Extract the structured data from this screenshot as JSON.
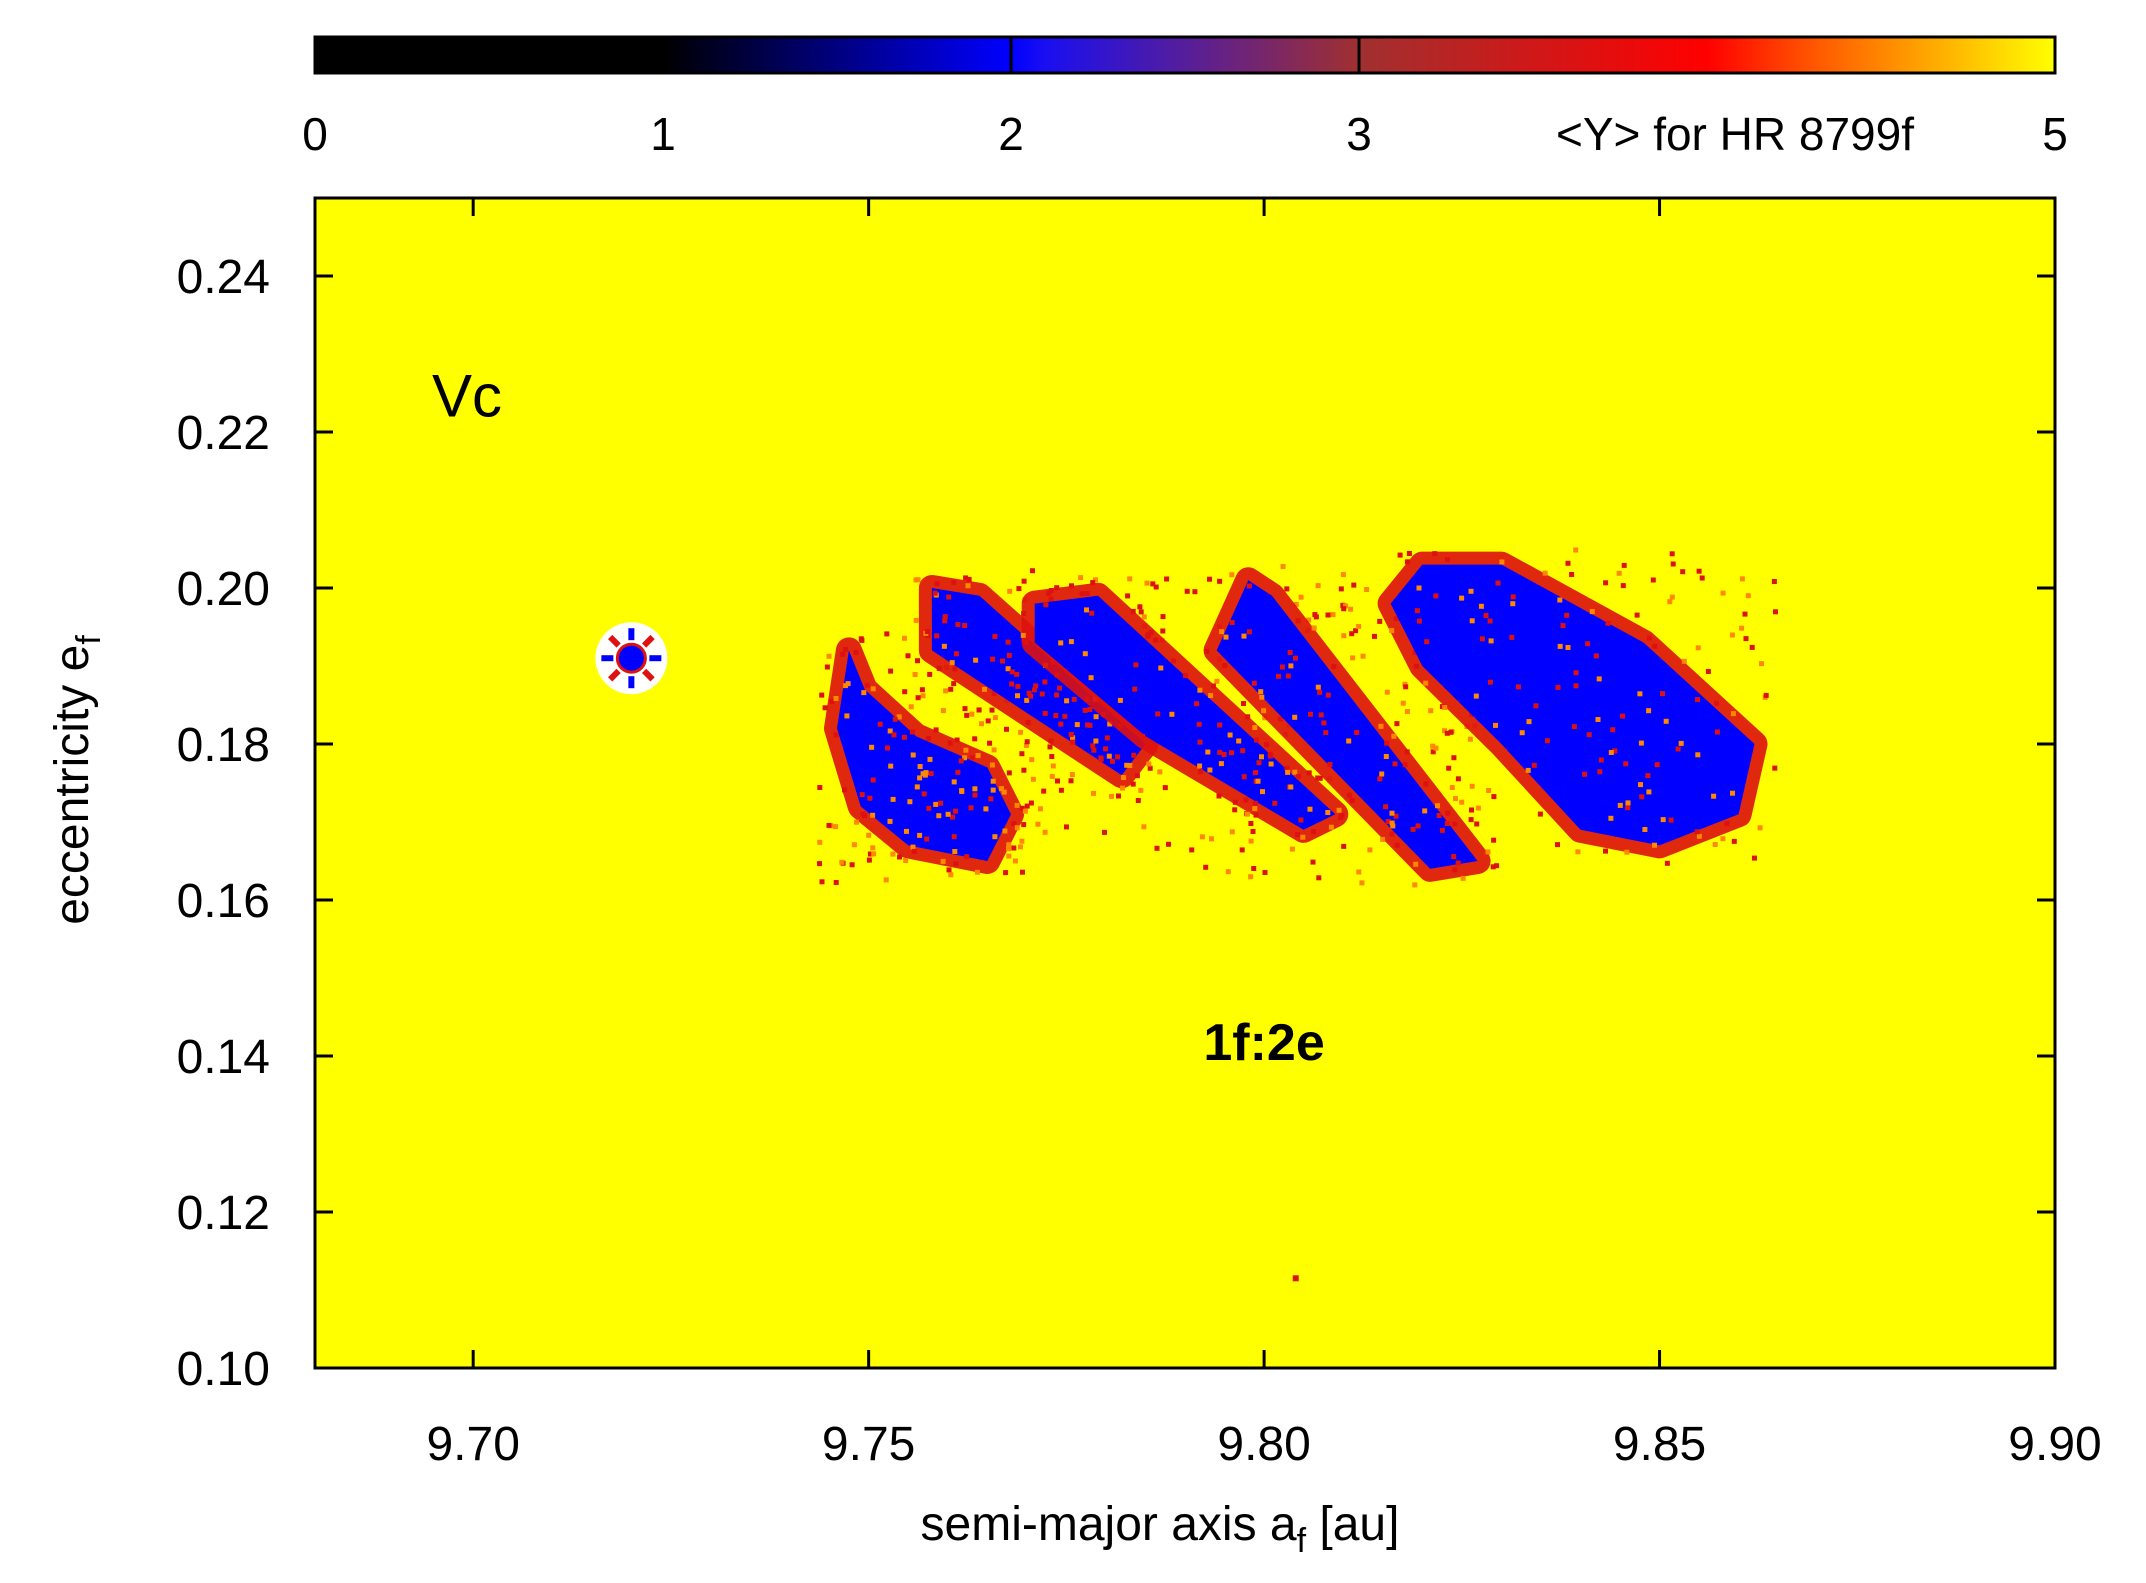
{
  "chart_data": {
    "type": "heatmap",
    "title": "",
    "xlabel": "semi-major axis a",
    "xlabel_sub": "f",
    "xlabel_unit": " [au]",
    "ylabel": "eccentricity e",
    "ylabel_sub": "f",
    "xlim": [
      9.68,
      9.9
    ],
    "ylim": [
      0.1,
      0.25
    ],
    "xticks": [
      9.7,
      9.75,
      9.8,
      9.85,
      9.9
    ],
    "xtick_labels": [
      "9.70",
      "9.75",
      "9.80",
      "9.85",
      "9.90"
    ],
    "yticks": [
      0.1,
      0.12,
      0.14,
      0.16,
      0.18,
      0.2,
      0.22,
      0.24
    ],
    "ytick_labels": [
      "0.10",
      "0.12",
      "0.14",
      "0.16",
      "0.18",
      "0.20",
      "0.22",
      "0.24"
    ],
    "colorbar": {
      "label": "<Y> for HR 8799f",
      "range": [
        0,
        5
      ],
      "ticks": [
        0,
        1,
        2,
        3,
        5
      ],
      "tick_labels": [
        "0",
        "1",
        "2",
        "3",
        "5"
      ],
      "stops": [
        {
          "value": 0,
          "color": "#000000"
        },
        {
          "value": 1,
          "color": "#000000"
        },
        {
          "value": 2,
          "color": "#0000ff"
        },
        {
          "value": 2.1,
          "color": "#1a0ff0"
        },
        {
          "value": 3,
          "color": "#a03030"
        },
        {
          "value": 4,
          "color": "#ff0000"
        },
        {
          "value": 4.3,
          "color": "#ff5500"
        },
        {
          "value": 5,
          "color": "#ffff00"
        }
      ]
    },
    "background_value": 5,
    "background_color": "#ffff00",
    "chaotic_color": "#0000ff",
    "boundary_color": "#dd1111",
    "regions": [
      {
        "name": "island-1",
        "polygon": [
          [
            9.7475,
            0.192
          ],
          [
            9.7495,
            0.187
          ],
          [
            9.756,
            0.181
          ],
          [
            9.765,
            0.177
          ],
          [
            9.768,
            0.171
          ],
          [
            9.765,
            0.165
          ],
          [
            9.755,
            0.167
          ],
          [
            9.749,
            0.172
          ],
          [
            9.746,
            0.182
          ]
        ]
      },
      {
        "name": "band-2",
        "polygon": [
          [
            9.758,
            0.2
          ],
          [
            9.764,
            0.199
          ],
          [
            9.785,
            0.18
          ],
          [
            9.782,
            0.176
          ],
          [
            9.758,
            0.192
          ]
        ]
      },
      {
        "name": "band-3",
        "polygon": [
          [
            9.771,
            0.198
          ],
          [
            9.779,
            0.199
          ],
          [
            9.809,
            0.171
          ],
          [
            9.805,
            0.169
          ],
          [
            9.785,
            0.181
          ],
          [
            9.771,
            0.193
          ]
        ]
      },
      {
        "name": "band-4",
        "polygon": [
          [
            9.798,
            0.201
          ],
          [
            9.801,
            0.199
          ],
          [
            9.827,
            0.165
          ],
          [
            9.821,
            0.164
          ],
          [
            9.794,
            0.192
          ]
        ]
      },
      {
        "name": "island-5",
        "polygon": [
          [
            9.82,
            0.203
          ],
          [
            9.83,
            0.203
          ],
          [
            9.848,
            0.193
          ],
          [
            9.862,
            0.18
          ],
          [
            9.86,
            0.171
          ],
          [
            9.85,
            0.167
          ],
          [
            9.84,
            0.169
          ],
          [
            9.83,
            0.18
          ],
          [
            9.82,
            0.19
          ],
          [
            9.816,
            0.198
          ]
        ]
      }
    ],
    "markers": [
      {
        "label": "",
        "x": 9.72,
        "y": 0.191,
        "symbol": "star"
      },
      {
        "label": "",
        "x": 9.804,
        "y": 0.1115,
        "symbol": "dot"
      }
    ],
    "annotations": [
      {
        "text": "Vc",
        "x": 9.7,
        "y": 0.222
      },
      {
        "text": "1f:2e",
        "x": 9.8,
        "y": 0.1395
      }
    ]
  }
}
